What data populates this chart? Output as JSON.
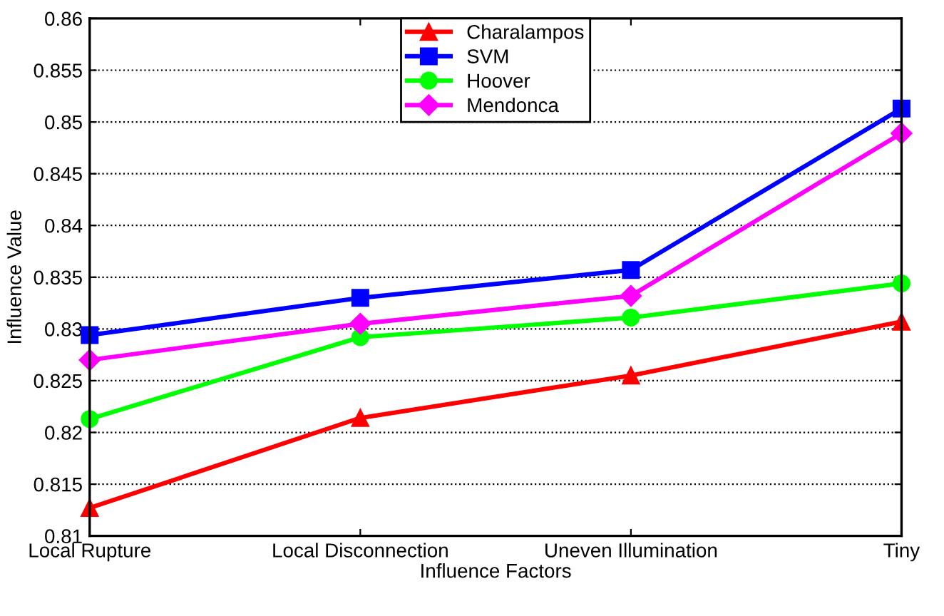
{
  "chart_data": {
    "type": "line",
    "xlabel": "Influence Factors",
    "ylabel": "Influence Value",
    "categories": [
      "Local Rupture",
      "Local Disconnection",
      "Uneven Illumination",
      "Tiny"
    ],
    "series": [
      {
        "name": "Charalampos",
        "color": "#ff0000",
        "marker": "triangle",
        "values": [
          0.8127,
          0.8214,
          0.8255,
          0.8307
        ]
      },
      {
        "name": "SVM",
        "color": "#0000ff",
        "marker": "square",
        "values": [
          0.8294,
          0.833,
          0.8357,
          0.8513
        ]
      },
      {
        "name": "Hoover",
        "color": "#00ff00",
        "marker": "circle",
        "values": [
          0.8213,
          0.8292,
          0.8311,
          0.8344
        ]
      },
      {
        "name": "Mendonca",
        "color": "#ff00ff",
        "marker": "diamond",
        "values": [
          0.827,
          0.8305,
          0.8332,
          0.8489
        ]
      }
    ],
    "ylim": [
      0.81,
      0.86
    ],
    "yticks": [
      0.81,
      0.815,
      0.82,
      0.825,
      0.83,
      0.835,
      0.84,
      0.845,
      0.85,
      0.855,
      0.86
    ],
    "grid": "y",
    "legend": "top",
    "line_style": "solid"
  }
}
